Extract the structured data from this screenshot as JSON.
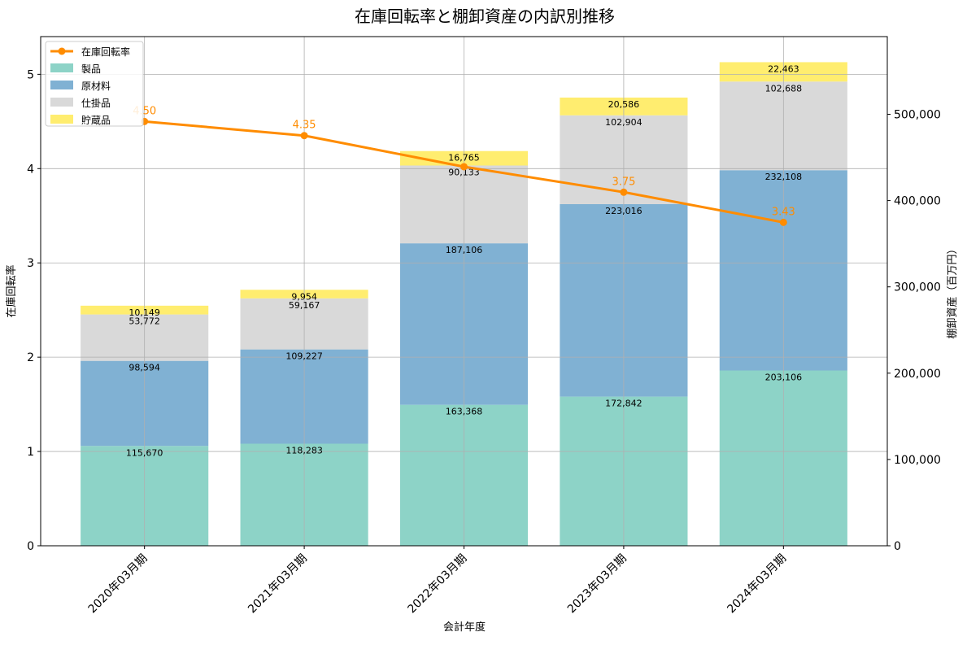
{
  "chart_data": {
    "type": "bar",
    "title": "在庫回転率と棚卸資産の内訳別推移",
    "xlabel": "会計年度",
    "ylabel_left": "在庫回転率",
    "ylabel_right": "棚卸資産（百万円）",
    "categories": [
      "2020年03月期",
      "2021年03月期",
      "2022年03月期",
      "2023年03月期",
      "2024年03月期"
    ],
    "left_axis": {
      "range": [
        0,
        5.4
      ],
      "ticks": [
        "0",
        "1",
        "2",
        "3",
        "4",
        "5"
      ]
    },
    "right_axis": {
      "range": [
        0,
        590000
      ],
      "ticks": [
        "0",
        "100,000",
        "200,000",
        "300,000",
        "400,000",
        "500,000"
      ]
    },
    "grid": true,
    "legend_position": "top-left",
    "stacked_series": [
      {
        "name": "製品",
        "color": "#8dd3c7",
        "values": [
          115670,
          118283,
          163368,
          172842,
          203106
        ],
        "labels": [
          "115,670",
          "118,283",
          "163,368",
          "172,842",
          "203,106"
        ]
      },
      {
        "name": "原材料",
        "color": "#80b1d3",
        "values": [
          98594,
          109227,
          187106,
          223016,
          232108
        ],
        "labels": [
          "98,594",
          "109,227",
          "187,106",
          "223,016",
          "232,108"
        ]
      },
      {
        "name": "仕掛品",
        "color": "#d9d9d9",
        "values": [
          53772,
          59167,
          90133,
          102904,
          102688
        ],
        "labels": [
          "53,772",
          "59,167",
          "90,133",
          "102,904",
          "102,688"
        ]
      },
      {
        "name": "貯蔵品",
        "color": "#ffed6f",
        "values": [
          10149,
          9954,
          16765,
          20586,
          22463
        ],
        "labels": [
          "10,149",
          "9,954",
          "16,765",
          "20,586",
          "22,463"
        ]
      }
    ],
    "line_series": {
      "name": "在庫回転率",
      "color": "#ff8c00",
      "values": [
        4.5,
        4.35,
        4.02,
        3.75,
        3.43
      ],
      "labels": [
        "4.50",
        "4.35",
        "",
        "3.75",
        "3.43"
      ]
    }
  }
}
